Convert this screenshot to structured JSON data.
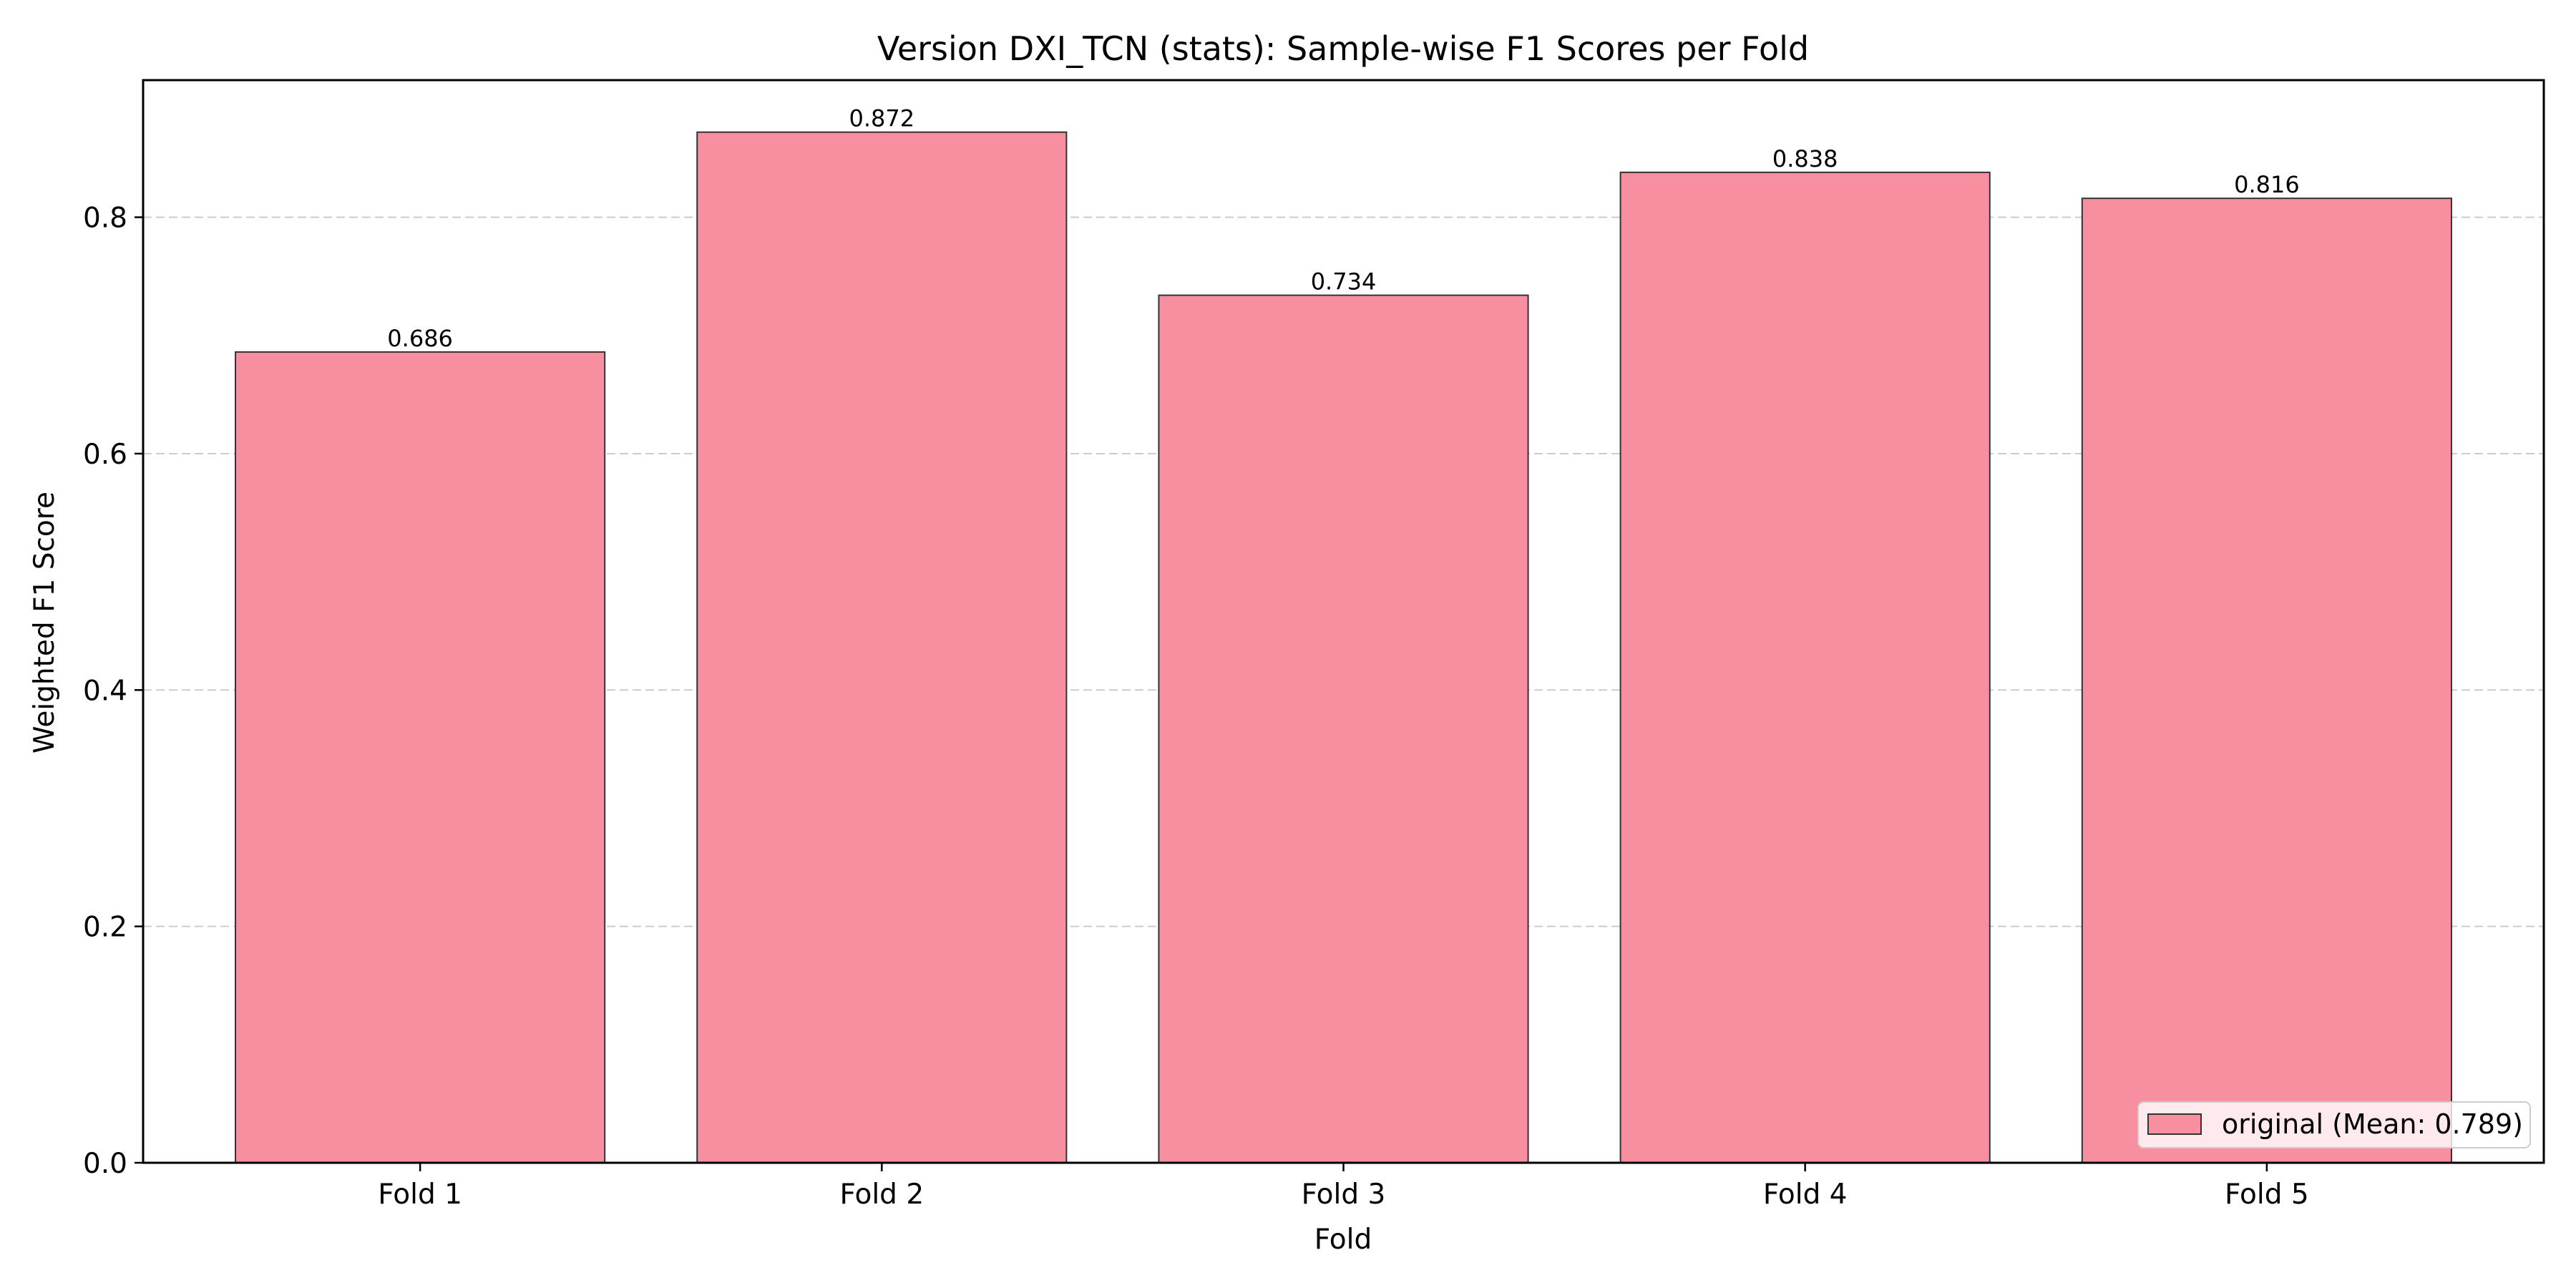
{
  "colors": {
    "bar_fill": "#f78fa1",
    "bar_edge": "#333333",
    "grid": "#cccccc",
    "axis": "#000000"
  },
  "chart_data": {
    "type": "bar",
    "title": "Version DXI_TCN (stats): Sample-wise F1 Scores per Fold",
    "xlabel": "Fold",
    "ylabel": "Weighted F1 Score",
    "categories": [
      "Fold 1",
      "Fold 2",
      "Fold 3",
      "Fold 4",
      "Fold 5"
    ],
    "series": [
      {
        "name": "original (Mean: 0.789)",
        "values": [
          0.686,
          0.872,
          0.734,
          0.838,
          0.816
        ],
        "labels": [
          "0.686",
          "0.872",
          "0.734",
          "0.838",
          "0.816"
        ]
      }
    ],
    "ylim": [
      0,
      0.916
    ],
    "yticks": [
      0.0,
      0.2,
      0.4,
      0.6,
      0.8
    ],
    "ytick_labels": [
      "0.0",
      "0.2",
      "0.4",
      "0.6",
      "0.8"
    ],
    "grid": "y-dashed",
    "legend_position": "lower-right"
  }
}
